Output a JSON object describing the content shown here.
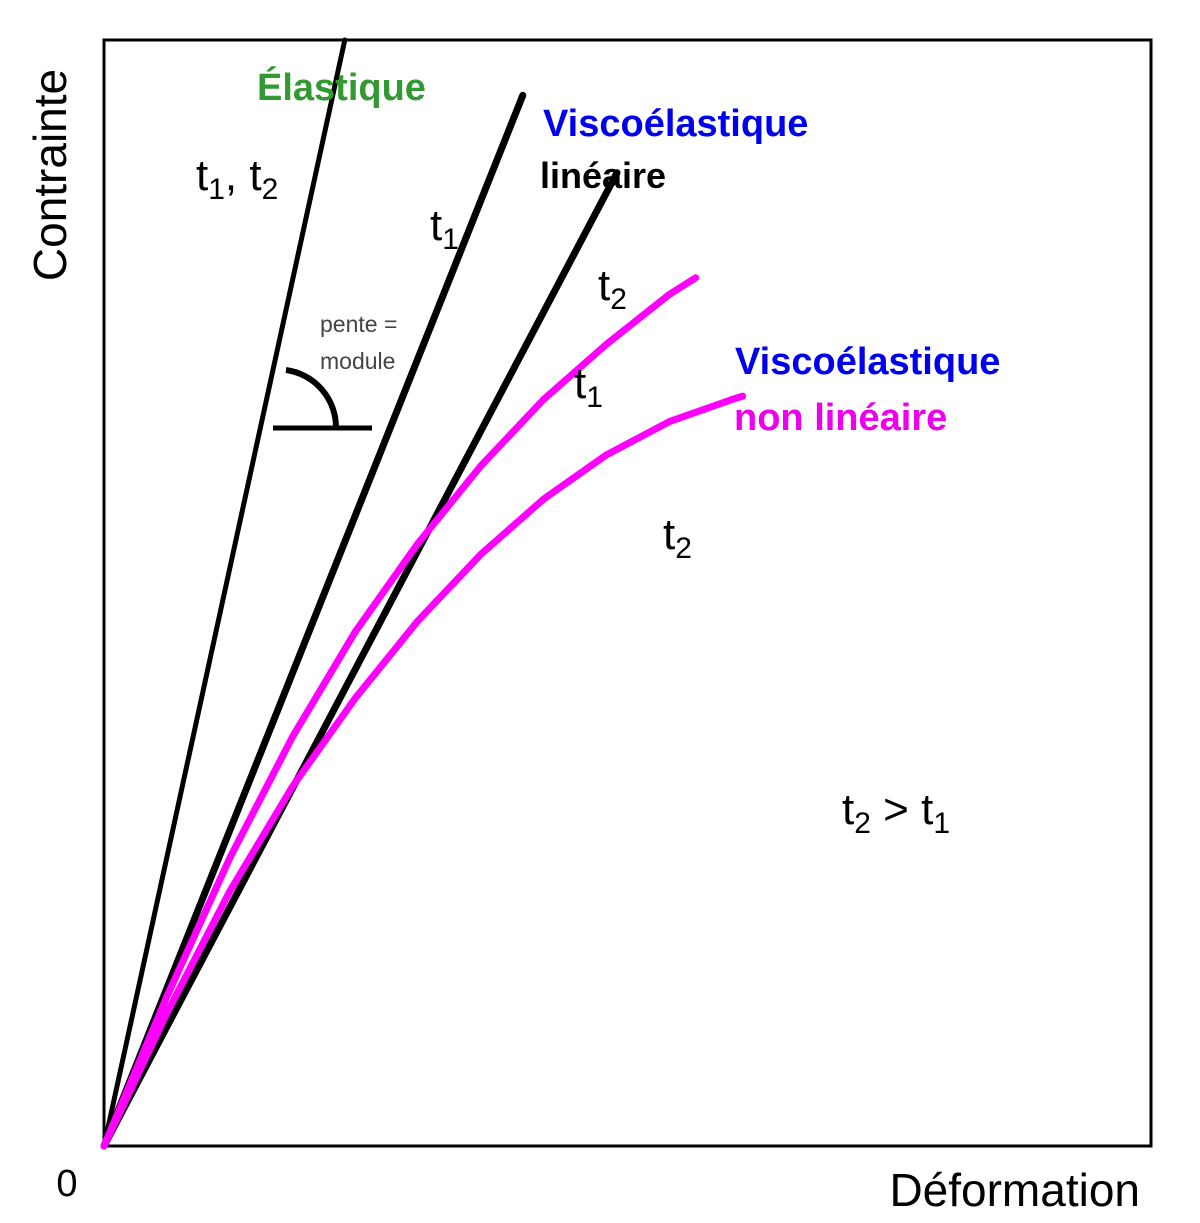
{
  "chart_data": {
    "type": "line",
    "title": "",
    "xlabel": "Déformation",
    "ylabel": "Contrainte",
    "origin_label": "0",
    "xlim": [
      0,
      100
    ],
    "ylim": [
      0,
      100
    ],
    "grid": false,
    "legend": "none",
    "series": [
      {
        "key": "elastic",
        "color": "#000000",
        "x": [
          0,
          23
        ],
        "y": [
          0,
          100
        ]
      },
      {
        "key": "lin_t1",
        "color": "#000000",
        "x": [
          0,
          40
        ],
        "y": [
          0,
          95
        ]
      },
      {
        "key": "lin_t2",
        "color": "#000000",
        "x": [
          0,
          49
        ],
        "y": [
          0,
          88
        ]
      },
      {
        "key": "nonlin_t1",
        "color": "#ff00ff",
        "x": [
          0,
          6,
          12,
          18,
          24,
          30,
          36,
          42,
          48,
          54,
          56.5
        ],
        "y": [
          0,
          13.5,
          26,
          37,
          46.5,
          54.5,
          61.5,
          67.5,
          72.5,
          77,
          78.5
        ]
      },
      {
        "key": "nonlin_t2",
        "color": "#ff00ff",
        "x": [
          0,
          6,
          12,
          18,
          24,
          30,
          36,
          42,
          48,
          54,
          60,
          61
        ],
        "y": [
          0,
          12,
          23,
          32.5,
          40.5,
          47.5,
          53.5,
          58.5,
          62.5,
          65.5,
          67.5,
          67.8
        ]
      }
    ],
    "annotations": {
      "elastic_title": {
        "text": "Élastique",
        "color": "#339933"
      },
      "elastic_times": {
        "base1": "t",
        "sub1": "1",
        "sep": ", ",
        "base2": "t",
        "sub2": "2"
      },
      "slope_line1": "pente =",
      "slope_line2": "module",
      "lin_title1": {
        "text": "Viscoélastique",
        "color": "#0000ee"
      },
      "lin_title2": {
        "text": "linéaire",
        "color": "#000000"
      },
      "lin_t1": {
        "base": "t",
        "sub": "1"
      },
      "lin_t2": {
        "base": "t",
        "sub": "2"
      },
      "nonlin_title1": {
        "text": "Viscoélastique",
        "color": "#0000ee"
      },
      "nonlin_title2": {
        "text": "non linéaire",
        "color": "#ee00ee"
      },
      "nonlin_t1": {
        "base": "t",
        "sub": "1"
      },
      "nonlin_t2": {
        "base": "t",
        "sub": "2"
      },
      "relation": {
        "base1": "t",
        "sub1": "2",
        "op": " > ",
        "base2": "t",
        "sub2": "1"
      }
    }
  }
}
